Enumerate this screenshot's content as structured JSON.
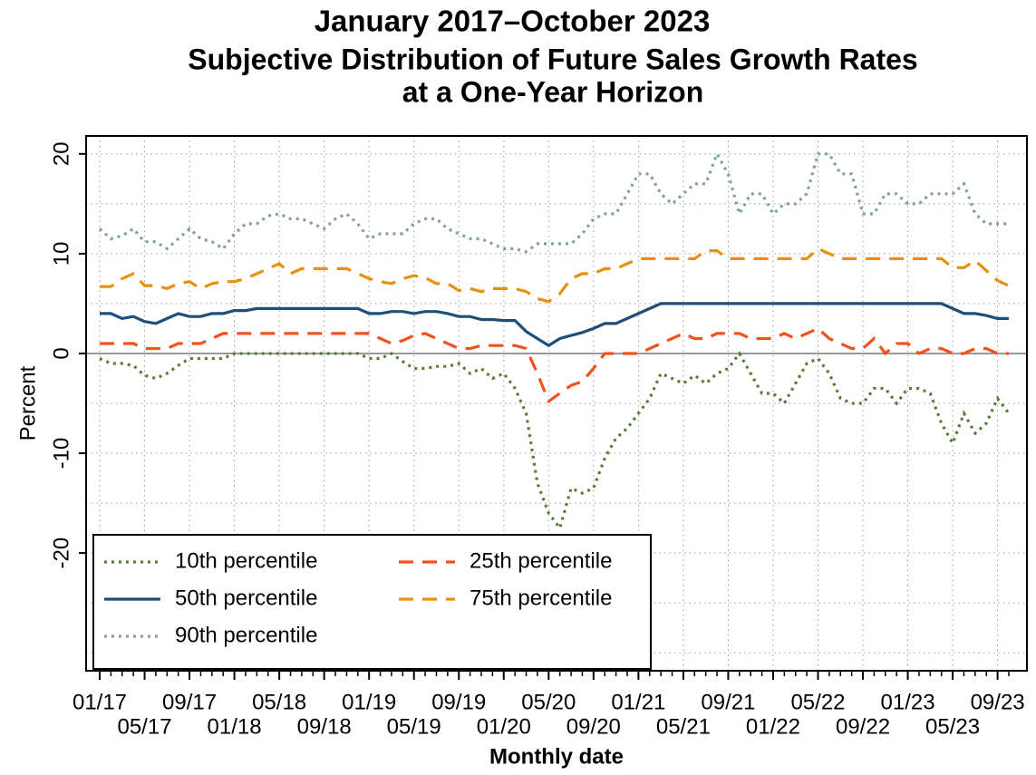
{
  "chart_data": {
    "type": "line",
    "title": "January 2017–October 2023",
    "title_color": "#ff0000",
    "subtitle_lines": [
      "Subjective Distribution of Future Sales Growth Rates",
      "at a One-Year Horizon"
    ],
    "y_label": "Percent",
    "x_label": "Monthly date",
    "categories": [
      "01/17",
      null,
      null,
      null,
      "05/17",
      null,
      null,
      null,
      "09/17",
      null,
      null,
      null,
      "01/18",
      null,
      null,
      null,
      "05/18",
      null,
      null,
      null,
      "09/18",
      null,
      null,
      null,
      "01/19",
      null,
      null,
      null,
      "05/19",
      null,
      null,
      null,
      "09/19",
      null,
      null,
      null,
      "01/20",
      null,
      null,
      null,
      "05/20",
      null,
      null,
      null,
      "09/20",
      null,
      null,
      null,
      "01/21",
      null,
      null,
      null,
      "05/21",
      null,
      null,
      null,
      "09/21",
      null,
      null,
      null,
      "01/22",
      null,
      null,
      null,
      "05/22",
      null,
      null,
      null,
      "09/22",
      null,
      null,
      null,
      "01/23",
      null,
      null,
      null,
      "05/23",
      null,
      null,
      null,
      "09/23",
      null
    ],
    "ylim": [
      -31.8,
      21.8
    ],
    "yticks": [
      -20,
      -10,
      0,
      10,
      20
    ],
    "y_minor_grid": [
      -30,
      -25,
      -15,
      -5,
      5,
      15
    ],
    "grid": true,
    "zero_line": true,
    "legend_position": "lower left",
    "series": [
      {
        "name": "10th percentile",
        "color": "#5b7b3a",
        "dash": "dotted",
        "values": [
          -0.5,
          -1,
          -1,
          -1.2,
          -2.2,
          -2.5,
          -2,
          -1.2,
          -0.5,
          -0.5,
          -0.5,
          -0.5,
          0,
          0,
          0,
          0,
          0,
          0,
          0,
          0,
          0,
          0,
          0,
          0,
          -0.5,
          -0.5,
          0,
          -0.8,
          -1.5,
          -1.5,
          -1.3,
          -1.3,
          -1,
          -2,
          -1.5,
          -2.5,
          -2,
          -3.5,
          -6,
          -13,
          -16,
          -17.5,
          -13.5,
          -14,
          -13.5,
          -10.5,
          -8.5,
          -7.5,
          -6,
          -4.5,
          -2,
          -2.5,
          -3,
          -2.2,
          -3,
          -2,
          -1.5,
          0,
          -2,
          -4,
          -4,
          -5,
          -3,
          -1,
          -0.5,
          -2,
          -4.5,
          -5,
          -5,
          -3.5,
          -3.5,
          -5,
          -3.5,
          -3.5,
          -4,
          -7,
          -9,
          -6,
          -8,
          -7,
          -4.5,
          -6
        ]
      },
      {
        "name": "25th percentile",
        "color": "#f4511e",
        "dash": "dashed",
        "values": [
          1,
          1,
          1,
          1,
          0.5,
          0.5,
          0.5,
          1,
          1,
          1,
          1.5,
          2,
          2,
          2,
          2,
          2,
          2,
          2,
          2,
          2,
          2,
          2,
          2,
          2,
          2,
          1.5,
          1,
          1.3,
          1.8,
          2,
          1.5,
          1,
          0.5,
          0.5,
          0.8,
          0.8,
          0.8,
          0.8,
          0.5,
          -2,
          -4.8,
          -4,
          -3.2,
          -2.8,
          -1.5,
          0,
          0,
          0,
          0,
          0.5,
          1,
          1.5,
          2,
          1.5,
          1.5,
          2,
          2,
          2,
          1.5,
          1.5,
          1.5,
          2,
          1.5,
          2,
          2.5,
          1.5,
          1,
          0.5,
          0.5,
          1.5,
          0,
          1,
          1,
          0,
          0.5,
          0.5,
          0,
          0,
          0.5,
          0.5,
          0,
          0
        ]
      },
      {
        "name": "50th percentile",
        "color": "#1f4e79",
        "dash": "solid",
        "values": [
          4,
          4,
          3.5,
          3.7,
          3.2,
          3,
          3.5,
          4,
          3.7,
          3.7,
          4,
          4,
          4.3,
          4.3,
          4.5,
          4.5,
          4.5,
          4.5,
          4.5,
          4.5,
          4.5,
          4.5,
          4.5,
          4.5,
          4,
          4,
          4.2,
          4.2,
          4,
          4.2,
          4.2,
          4,
          3.7,
          3.7,
          3.4,
          3.4,
          3.3,
          3.3,
          2.2,
          1.5,
          0.8,
          1.5,
          1.8,
          2.1,
          2.5,
          3,
          3,
          3.5,
          4,
          4.5,
          5,
          5,
          5,
          5,
          5,
          5,
          5,
          5,
          5,
          5,
          5,
          5,
          5,
          5,
          5,
          5,
          5,
          5,
          5,
          5,
          5,
          5,
          5,
          5,
          5,
          5,
          4.5,
          4,
          4,
          3.8,
          3.5,
          3.5
        ]
      },
      {
        "name": "75th percentile",
        "color": "#e8900c",
        "dash": "dashed",
        "values": [
          6.7,
          6.7,
          7.5,
          8,
          6.8,
          6.8,
          6.5,
          7,
          7.2,
          6.5,
          7,
          7.2,
          7.2,
          7.5,
          8,
          8.5,
          9,
          8,
          8.5,
          8.5,
          8.5,
          8.5,
          8.5,
          8,
          7.5,
          7.2,
          7,
          7.5,
          7.8,
          7.6,
          7,
          7,
          6.3,
          6.5,
          6.2,
          6.5,
          6.5,
          6.5,
          6.2,
          5.5,
          5.2,
          6,
          7.5,
          8,
          8,
          8.5,
          8.5,
          9,
          9.5,
          9.5,
          9.5,
          9.5,
          9.5,
          9.5,
          10.3,
          10.3,
          9.5,
          9.5,
          9.5,
          9.5,
          9.5,
          9.5,
          9.5,
          9.5,
          10.5,
          10,
          9.5,
          9.5,
          9.5,
          9.5,
          9.5,
          9.5,
          9.5,
          9.5,
          9.5,
          9.5,
          8.6,
          8.6,
          9.3,
          8.3,
          7.3,
          6.8
        ]
      },
      {
        "name": "90th percentile",
        "color": "#7fa39b",
        "dash": "dotted",
        "values": [
          12.5,
          11.5,
          11.8,
          12.5,
          11.2,
          11.2,
          10.5,
          11.5,
          12.5,
          11.5,
          11.2,
          10.5,
          12,
          13,
          13,
          13.8,
          14,
          13.5,
          13.5,
          13,
          12.5,
          13.5,
          14,
          13,
          11.5,
          12,
          12,
          12,
          13,
          13.5,
          13.5,
          12.5,
          12,
          11.5,
          11.5,
          11,
          10.5,
          10.5,
          10.2,
          11,
          11,
          11,
          11,
          12,
          13.5,
          14,
          14,
          16,
          18,
          18,
          16,
          15,
          16,
          17,
          17,
          20,
          18,
          14,
          16,
          16,
          14,
          15,
          15,
          16,
          20,
          20,
          18,
          18,
          14,
          14,
          16,
          16,
          15,
          15,
          16,
          16,
          16,
          17,
          14,
          13,
          13,
          13
        ]
      }
    ]
  }
}
